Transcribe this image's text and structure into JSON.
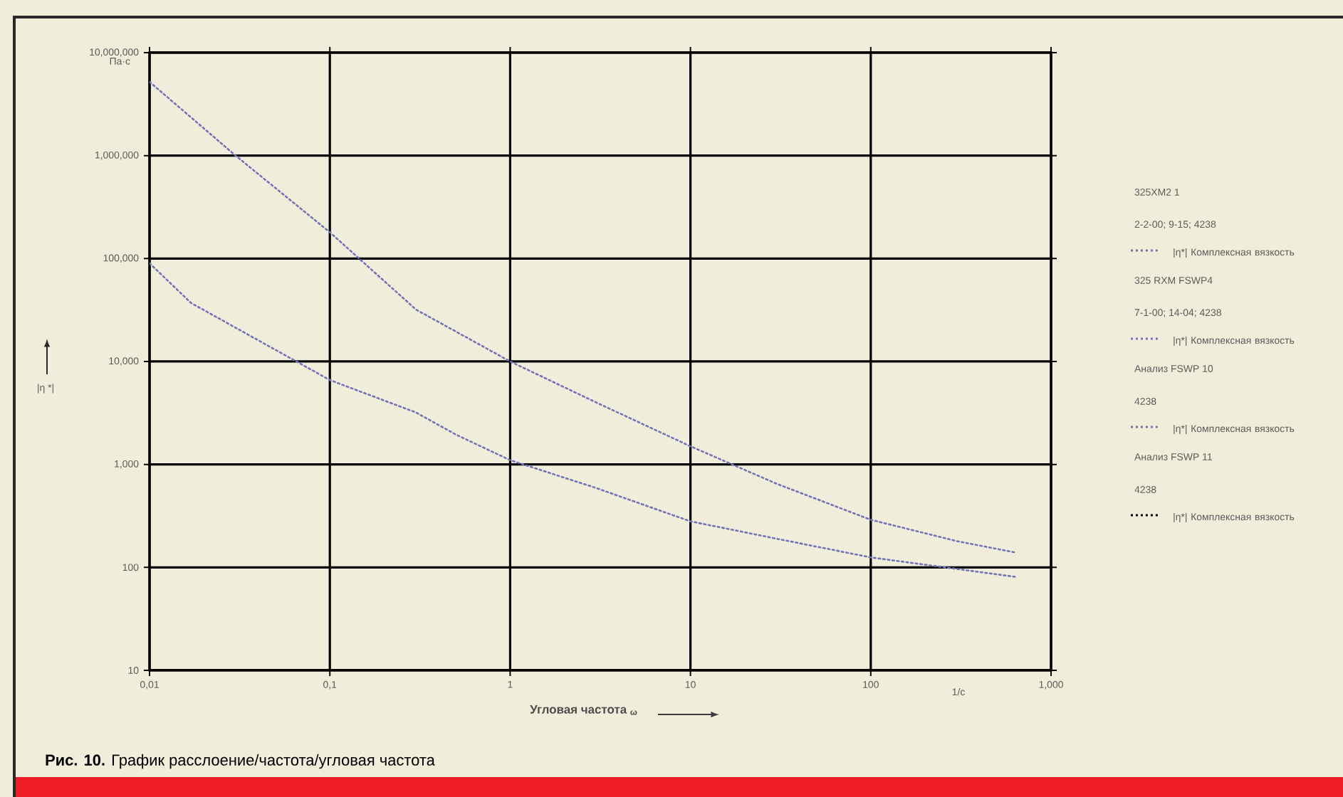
{
  "chart_data": {
    "type": "line",
    "xlabel": "Угловая частота $_{ω}$",
    "ylabel": "|η *|",
    "log": "xy",
    "grid": true,
    "legend": "right",
    "marker": "none",
    "line_style": "dotted",
    "xlim": [
      0.01,
      1000
    ],
    "ylim": [
      10,
      10000000
    ],
    "xticks": [
      {
        "value": 0.01,
        "label": "0,01"
      },
      {
        "value": 0.1,
        "label": "0,1"
      },
      1,
      10,
      100,
      {
        "value": 1000,
        "label": "1,000"
      }
    ],
    "yticks": [
      10,
      100,
      {
        "value": 1000,
        "label": "1,000"
      },
      {
        "value": 10000,
        "label": "10,000"
      },
      {
        "value": 100000,
        "label": "100,000"
      },
      {
        "value": 1000000,
        "label": "1,000,000"
      },
      {
        "value": 10000000,
        "label": "10,000,000"
      }
    ],
    "series": [
      {
        "name": "|η*| Комплексная вязкость",
        "color": "#7373b8",
        "x": [
          0.01,
          0.03,
          0.1,
          0.3,
          1,
          3,
          10,
          30,
          100,
          300,
          630
        ],
        "values": [
          5200000,
          1000000,
          180000,
          32000,
          10000,
          4000,
          1500,
          650,
          290,
          180,
          140
        ]
      },
      {
        "name": "|η*| Комплексная вязкость",
        "color": "#7373b8",
        "x": [
          0.01,
          0.017,
          0.1,
          0.3,
          0.5,
          1,
          3,
          10,
          30,
          100,
          630
        ],
        "values": [
          90000,
          37000,
          6600,
          3200,
          1950,
          1100,
          590,
          280,
          190,
          125,
          81
        ]
      },
      {
        "name": "|η*| Комплексная вязкость",
        "color": "#7373b8"
      },
      {
        "name": "|η*| Комплексная вязкость",
        "color": "#000000"
      }
    ],
    "annotations": [
      "Па·с",
      "1/с",
      "325XM2 1",
      "2-2-00; 9-15; 4238",
      "325 RXM FSWP4",
      "7-1-00; 14-04; 4238",
      "Анализ FSWP 10",
      "4238",
      "Анализ FSWP 11",
      "4238",
      "**Рис. 10.** График расслоение/частота/угловая частота"
    ]
  }
}
